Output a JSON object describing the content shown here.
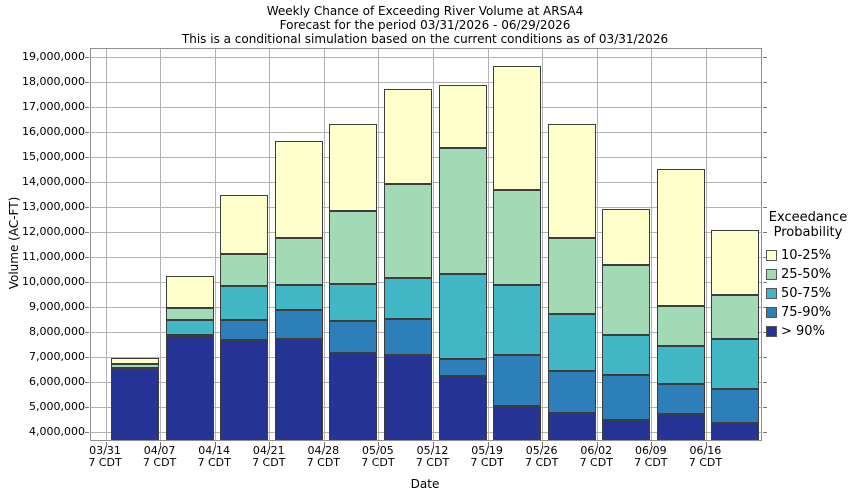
{
  "title": {
    "line1": "Weekly Chance of Exceeding River Volume at ARSA4",
    "line2": "Forecast for the period 03/31/2026 - 06/29/2026",
    "line3": "This is a conditional simulation based on the current conditions as of 03/31/2026"
  },
  "y_axis": {
    "label": "Volume (AC-FT)",
    "tick_labels": [
      "4,000,000",
      "5,000,000",
      "6,000,000",
      "7,000,000",
      "8,000,000",
      "9,000,000",
      "10,000,000",
      "11,000,000",
      "12,000,000",
      "13,000,000",
      "14,000,000",
      "15,000,000",
      "16,000,000",
      "17,000,000",
      "18,000,000",
      "19,000,000"
    ]
  },
  "x_axis": {
    "label": "Date",
    "sub_label": "7 CDT"
  },
  "legend": {
    "title_line1": "Exceedance",
    "title_line2": "Probability",
    "entries": [
      {
        "label": "10-25%",
        "color": "#FFFFCC"
      },
      {
        "label": "25-50%",
        "color": "#A1DAB4"
      },
      {
        "label": "50-75%",
        "color": "#41B6C4"
      },
      {
        "label": "75-90%",
        "color": "#2C7FB8"
      },
      {
        "label": "> 90%",
        "color": "#253494"
      }
    ]
  },
  "chart_data": {
    "type": "bar",
    "stacked": true,
    "title": "Weekly Chance of Exceeding River Volume at ARSA4",
    "xlabel": "Date",
    "ylabel": "Volume (AC-FT)",
    "unit": "AC-FT",
    "grid": true,
    "legend_position": "right",
    "ylim": [
      4000000,
      19000000
    ],
    "y_tick_step": 1000000,
    "render_ylim": [
      3700000,
      19350000
    ],
    "base_value": 3700000,
    "outline_color": "#3d3d3d",
    "categories": [
      "03/31",
      "04/07",
      "04/14",
      "04/21",
      "04/28",
      "05/05",
      "05/12",
      "05/19",
      "05/26",
      "06/02",
      "06/09",
      "06/16"
    ],
    "category_sub_label": "7 CDT",
    "series": [
      {
        "name": "> 90%",
        "color": "#253494",
        "cumulative_top_ac_ft": [
          6550000,
          7850000,
          7700000,
          7750000,
          7200000,
          7100000,
          6250000,
          5050000,
          4800000,
          4500000,
          4750000,
          4400000
        ]
      },
      {
        "name": "75-90%",
        "color": "#2C7FB8",
        "cumulative_top_ac_ft": [
          6570000,
          7900000,
          8500000,
          8900000,
          8450000,
          8550000,
          6950000,
          7100000,
          6450000,
          6300000,
          5950000,
          5750000
        ]
      },
      {
        "name": "50-75%",
        "color": "#41B6C4",
        "cumulative_top_ac_ft": [
          6600000,
          8500000,
          9850000,
          9900000,
          9950000,
          10200000,
          10350000,
          9900000,
          8750000,
          7900000,
          7450000,
          7750000
        ]
      },
      {
        "name": "25-50%",
        "color": "#A1DAB4",
        "cumulative_top_ac_ft": [
          6750000,
          9000000,
          11150000,
          11800000,
          12850000,
          13950000,
          15400000,
          13700000,
          11800000,
          10700000,
          9050000,
          9500000
        ]
      },
      {
        "name": "10-25%",
        "color": "#FFFFCC",
        "cumulative_top_ac_ft": [
          7000000,
          10250000,
          13500000,
          15650000,
          16350000,
          17750000,
          17900000,
          18650000,
          16350000,
          12950000,
          14550000,
          12100000
        ]
      }
    ]
  }
}
